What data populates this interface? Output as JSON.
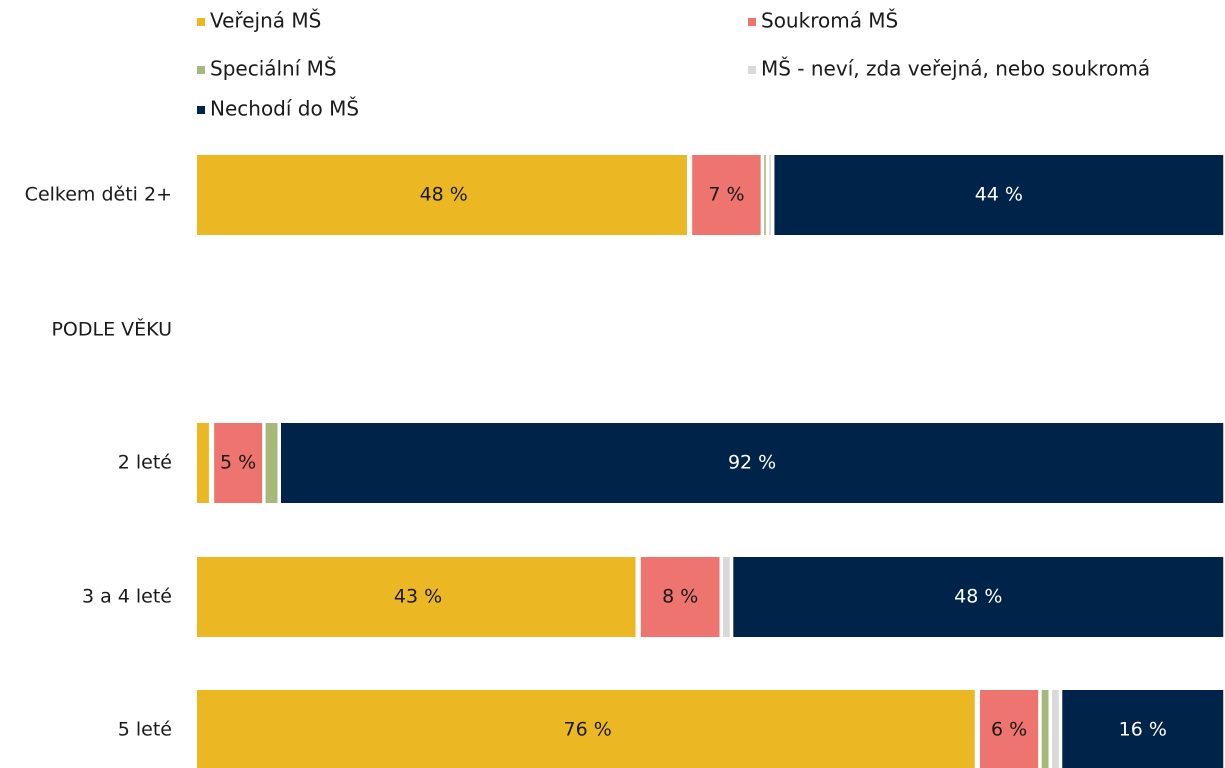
{
  "chart_data": {
    "type": "stacked-bar-horizontal",
    "categories": [
      "Celkem děti 2+",
      "PODLE VĚKU",
      "2 leté",
      "3 a 4 leté",
      "5 leté"
    ],
    "xlim": [
      0,
      100
    ],
    "legend": "top",
    "series": [
      {
        "name": "Veřejná MŠ",
        "color": "#ebb824",
        "values": [
          48,
          null,
          1.5,
          43,
          76
        ],
        "value_labels": [
          "48 %",
          null,
          null,
          "43 %",
          "76 %"
        ]
      },
      {
        "name": "Soukromá MŠ",
        "color": "#ee7470",
        "values": [
          7,
          null,
          5,
          8,
          6
        ],
        "value_labels": [
          "7 %",
          null,
          "5 %",
          "8 %",
          "6 %"
        ]
      },
      {
        "name": "Speciální MŠ",
        "color": "#a6b97a",
        "values": [
          0.5,
          null,
          1.5,
          0,
          1
        ],
        "value_labels": [
          null,
          null,
          null,
          null,
          null
        ]
      },
      {
        "name": "MŠ - neví, zda veřejná, nebo soukromá",
        "color": "#d9d9d9",
        "values": [
          0.5,
          null,
          0,
          1,
          1
        ],
        "value_labels": [
          null,
          null,
          null,
          null,
          null
        ]
      },
      {
        "name": "Nechodí do MŠ",
        "color": "#002449",
        "values": [
          44,
          null,
          92,
          48,
          16
        ],
        "value_labels": [
          "44 %",
          null,
          "92 %",
          "48 %",
          "16 %"
        ]
      }
    ]
  }
}
